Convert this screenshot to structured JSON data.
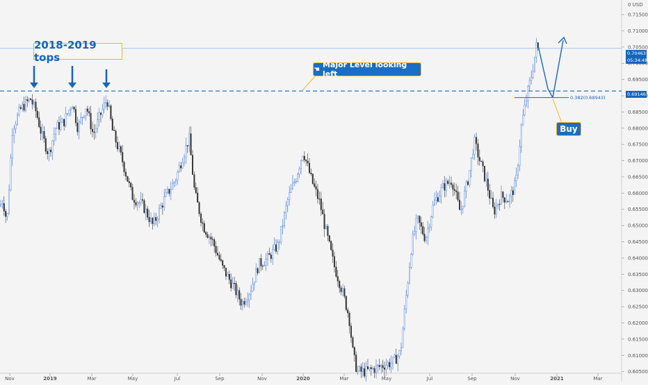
{
  "chart_data": {
    "type": "candlestick",
    "currency_label": "0 USD",
    "y_ticks": [
      "0.71500",
      "0.71000",
      "0.70500",
      "0.70000",
      "0.69500",
      "0.69000",
      "0.68500",
      "0.68000",
      "0.67500",
      "0.67000",
      "0.66500",
      "0.66000",
      "0.65500",
      "0.65000",
      "0.64500",
      "0.64000",
      "0.63500",
      "0.63000",
      "0.62500",
      "0.62000",
      "0.61500",
      "0.61000",
      "0.60500"
    ],
    "ylim": [
      0.6045,
      0.7195
    ],
    "x_ticks": [
      "Nov",
      "2019",
      "Mar",
      "May",
      "Jul",
      "Sep",
      "Nov",
      "2020",
      "Mar",
      "May",
      "Jul",
      "Sep",
      "Nov",
      "2021",
      "Mar"
    ],
    "price_path": [
      [
        0,
        0.656
      ],
      [
        4,
        0.658
      ],
      [
        10,
        0.651
      ],
      [
        18,
        0.68
      ],
      [
        30,
        0.686
      ],
      [
        44,
        0.689
      ],
      [
        52,
        0.685
      ],
      [
        60,
        0.678
      ],
      [
        70,
        0.672
      ],
      [
        80,
        0.68
      ],
      [
        92,
        0.682
      ],
      [
        104,
        0.688
      ],
      [
        112,
        0.68
      ],
      [
        124,
        0.687
      ],
      [
        134,
        0.678
      ],
      [
        146,
        0.685
      ],
      [
        154,
        0.689
      ],
      [
        162,
        0.679
      ],
      [
        176,
        0.67
      ],
      [
        190,
        0.659
      ],
      [
        206,
        0.656
      ],
      [
        220,
        0.65
      ],
      [
        236,
        0.658
      ],
      [
        252,
        0.664
      ],
      [
        264,
        0.672
      ],
      [
        272,
        0.677
      ],
      [
        280,
        0.66
      ],
      [
        292,
        0.65
      ],
      [
        306,
        0.645
      ],
      [
        320,
        0.637
      ],
      [
        336,
        0.631
      ],
      [
        348,
        0.626
      ],
      [
        360,
        0.63
      ],
      [
        372,
        0.638
      ],
      [
        386,
        0.64
      ],
      [
        400,
        0.644
      ],
      [
        414,
        0.658
      ],
      [
        426,
        0.665
      ],
      [
        436,
        0.673
      ],
      [
        448,
        0.664
      ],
      [
        460,
        0.657
      ],
      [
        468,
        0.649
      ],
      [
        480,
        0.638
      ],
      [
        492,
        0.63
      ],
      [
        502,
        0.622
      ],
      [
        508,
        0.61
      ],
      [
        514,
        0.605
      ],
      [
        526,
        0.605
      ],
      [
        540,
        0.606
      ],
      [
        552,
        0.607
      ],
      [
        566,
        0.608
      ],
      [
        576,
        0.611
      ],
      [
        584,
        0.628
      ],
      [
        592,
        0.644
      ],
      [
        600,
        0.652
      ],
      [
        612,
        0.646
      ],
      [
        624,
        0.657
      ],
      [
        638,
        0.662
      ],
      [
        650,
        0.664
      ],
      [
        662,
        0.654
      ],
      [
        674,
        0.665
      ],
      [
        682,
        0.676
      ],
      [
        690,
        0.67
      ],
      [
        700,
        0.663
      ],
      [
        710,
        0.654
      ],
      [
        720,
        0.659
      ],
      [
        732,
        0.658
      ],
      [
        742,
        0.663
      ],
      [
        750,
        0.681
      ],
      [
        758,
        0.69
      ],
      [
        766,
        0.698
      ],
      [
        772,
        0.706
      ],
      [
        776,
        0.702
      ]
    ],
    "last_price": "0.70463",
    "countdown": "05:34:48",
    "level_price": "0.69146",
    "fib_label": "0.382(0.68943)"
  },
  "annotations": {
    "tops_label": "2018-2019 tops",
    "level_label": "Major Level looking left",
    "level_icon": "hand-pointing-icon",
    "buy_label": "Buy"
  },
  "colors": {
    "up": "#2f6fd6",
    "down": "#333333",
    "level": "#1565c0",
    "tag_last": "#1565c0",
    "tag_level": "#1565c0"
  }
}
